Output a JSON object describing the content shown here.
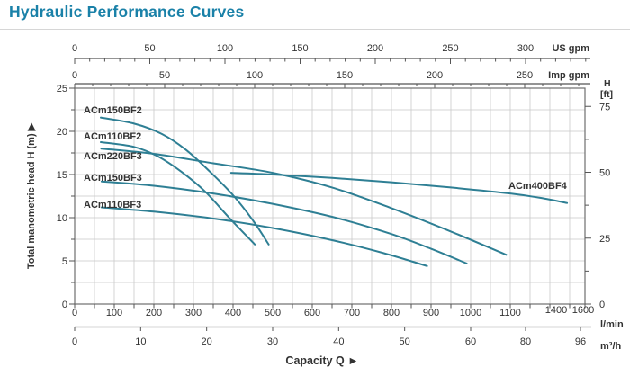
{
  "title": "Hydraulic Performance Curves",
  "colors": {
    "title": "#1a81a8",
    "curve": "#2e7f94",
    "grid": "#c9c9c9",
    "border": "#6e6e6e",
    "axis": "#555555",
    "text": "#333333",
    "curve_label": "#161616",
    "divider": "#d6d6d6"
  },
  "chart_data": {
    "type": "line",
    "title": "Hydraulic Performance Curves",
    "xlabel": "Capacity Q  ►",
    "ylabel_left": "Total manometric head H (m)  ▶",
    "ylabel_right": "H [ft]",
    "grid": true,
    "axes": {
      "us_gpm": {
        "unit": "US gpm",
        "ticks": [
          0,
          50,
          100,
          150,
          200,
          250,
          300
        ]
      },
      "imp_gpm": {
        "unit": "Imp gpm",
        "ticks": [
          0,
          50,
          100,
          150,
          200,
          250
        ]
      },
      "l_min": {
        "unit": "l/min",
        "ticks": [
          0,
          100,
          200,
          300,
          400,
          500,
          600,
          700,
          800,
          900,
          1000,
          1100,
          1400,
          1600
        ]
      },
      "m3_h": {
        "unit": "m³/h",
        "ticks": [
          0,
          10,
          20,
          30,
          40,
          50,
          60,
          80,
          96
        ]
      },
      "head_m": {
        "unit": "m",
        "ticks": [
          0,
          5,
          10,
          15,
          20,
          25
        ],
        "range": [
          0,
          25
        ]
      },
      "head_ft": {
        "unit": "H [ft]",
        "ticks": [
          0,
          25,
          50,
          75
        ]
      }
    },
    "series": [
      {
        "name": "ACm150BF2",
        "points": [
          [
            66,
            21.6
          ],
          [
            150,
            20.9
          ],
          [
            220,
            19.7
          ],
          [
            280,
            17.9
          ],
          [
            340,
            15.4
          ],
          [
            400,
            12.6
          ],
          [
            450,
            9.7
          ],
          [
            490,
            6.9
          ]
        ]
      },
      {
        "name": "ACm110BF2",
        "points": [
          [
            66,
            18.75
          ],
          [
            150,
            18.2
          ],
          [
            210,
            17.1
          ],
          [
            270,
            15.3
          ],
          [
            330,
            13.0
          ],
          [
            390,
            10.0
          ],
          [
            455,
            6.9
          ]
        ]
      },
      {
        "name": "ACm220BF3",
        "points": [
          [
            67,
            18.0
          ],
          [
            200,
            17.4
          ],
          [
            350,
            16.3
          ],
          [
            500,
            15.2
          ],
          [
            650,
            13.5
          ],
          [
            800,
            11.1
          ],
          [
            950,
            8.4
          ],
          [
            1090,
            5.7
          ]
        ]
      },
      {
        "name": "ACm150BF3",
        "points": [
          [
            68,
            14.2
          ],
          [
            200,
            13.7
          ],
          [
            350,
            12.8
          ],
          [
            500,
            11.6
          ],
          [
            650,
            10.1
          ],
          [
            800,
            8.1
          ],
          [
            900,
            6.4
          ],
          [
            990,
            4.7
          ]
        ]
      },
      {
        "name": "ACm110BF3",
        "points": [
          [
            68,
            11.2
          ],
          [
            200,
            10.7
          ],
          [
            350,
            9.9
          ],
          [
            500,
            8.8
          ],
          [
            650,
            7.4
          ],
          [
            780,
            5.9
          ],
          [
            890,
            4.4
          ]
        ]
      },
      {
        "name": "ACm400BF4",
        "points": [
          [
            395,
            15.2
          ],
          [
            500,
            15.0
          ],
          [
            650,
            14.6
          ],
          [
            800,
            14.1
          ],
          [
            950,
            13.5
          ],
          [
            1100,
            12.8
          ],
          [
            1300,
            12.3
          ],
          [
            1480,
            11.7
          ]
        ]
      }
    ]
  }
}
